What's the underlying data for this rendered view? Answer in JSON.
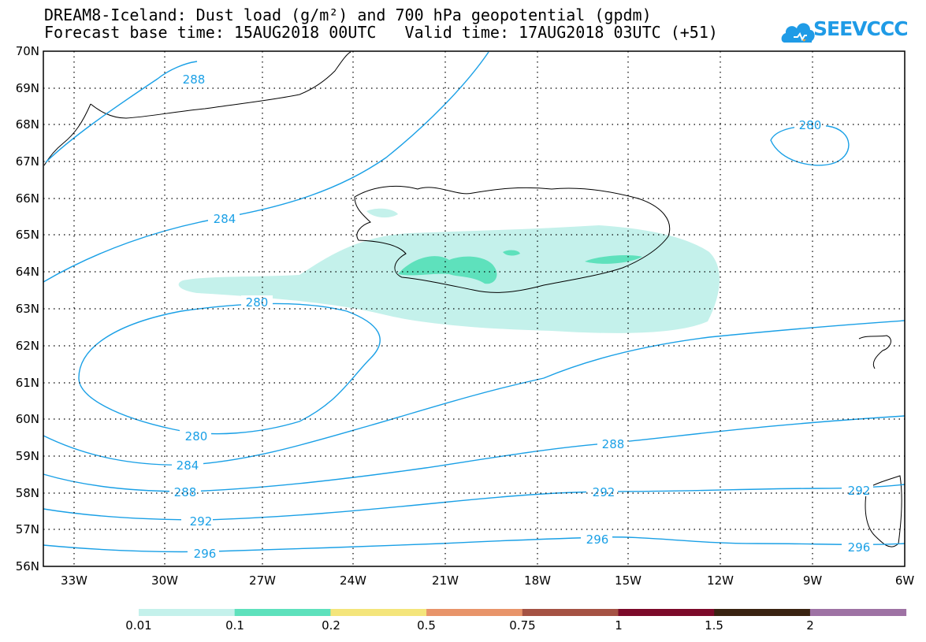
{
  "title": {
    "line1": "DREAM8-Iceland: Dust load (g/m²) and 700 hPa geopotential (gpdm)",
    "line2": "Forecast base time: 15AUG2018 00UTC   Valid time: 17AUG2018 03UTC (+51)"
  },
  "logo": {
    "text": "SEEVCCC",
    "icon": "cloud-icon",
    "color": "#1f9be6"
  },
  "axes": {
    "lat_labels": [
      "70N",
      "69N",
      "68N",
      "67N",
      "66N",
      "65N",
      "64N",
      "63N",
      "62N",
      "61N",
      "60N",
      "59N",
      "58N",
      "57N",
      "56N"
    ],
    "lon_labels": [
      "33W",
      "30W",
      "27W",
      "24W",
      "21W",
      "18W",
      "15W",
      "12W",
      "9W",
      "6W"
    ]
  },
  "contours": {
    "color": "#1aa0e6",
    "labels": [
      "288",
      "280",
      "284",
      "280",
      "280",
      "284",
      "288",
      "288",
      "292",
      "292",
      "296",
      "296",
      "292",
      "296"
    ]
  },
  "legend": {
    "colors": [
      "#c4f1eb",
      "#5ee1bc",
      "#f4e57b",
      "#e8946a",
      "#a55244",
      "#7c0a2a",
      "#3a2312",
      "#9e72a4"
    ],
    "labels": [
      "0.01",
      "0.1",
      "0.2",
      "0.5",
      "0.75",
      "1",
      "1.5",
      "2"
    ]
  }
}
